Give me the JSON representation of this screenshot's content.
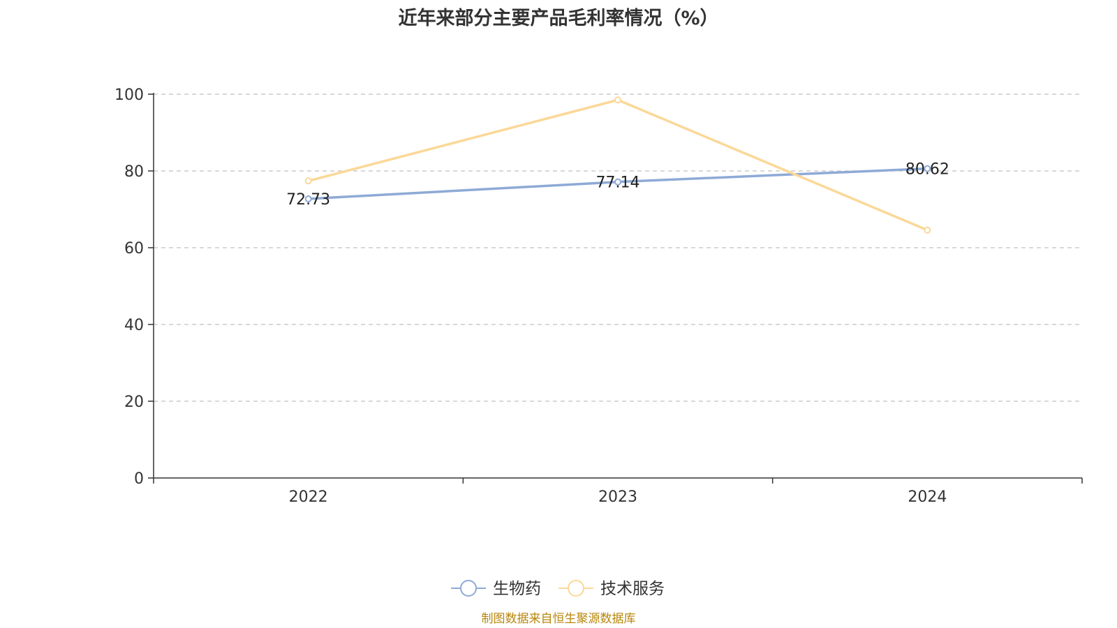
{
  "chart_data": {
    "type": "line",
    "title": "近年来部分主要产品毛利率情况（%）",
    "categories": [
      "2022",
      "2023",
      "2024"
    ],
    "ylim": [
      0,
      100
    ],
    "yticks": [
      "0",
      "20",
      "40",
      "60",
      "80",
      "100"
    ],
    "grid": true,
    "legend_position": "bottom-center",
    "series": [
      {
        "name": "生物药",
        "values": [
          72.73,
          77.14,
          80.62
        ],
        "labels": [
          "72.73",
          "77.14",
          "80.62"
        ],
        "color": "#8eaad6"
      },
      {
        "name": "技术服务",
        "values": [
          77.4,
          98.5,
          64.6
        ],
        "color": "#fbd898"
      }
    ]
  },
  "source": "制图数据来自恒生聚源数据库"
}
